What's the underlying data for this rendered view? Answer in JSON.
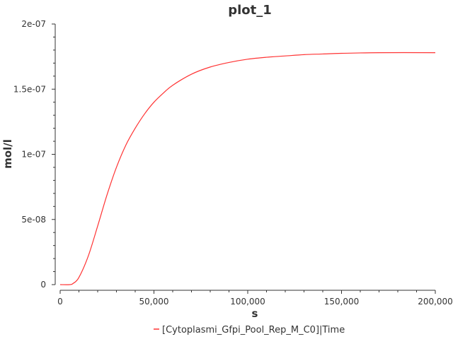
{
  "chart_data": {
    "type": "line",
    "title": "plot_1",
    "xlabel": "s",
    "ylabel": "mol/l",
    "xlim": [
      0,
      200000
    ],
    "ylim": [
      0,
      2e-07
    ],
    "x_ticks": [
      0,
      50000,
      100000,
      150000,
      200000
    ],
    "x_tick_labels": [
      "0",
      "50,000",
      "100,000",
      "150,000",
      "200,000"
    ],
    "y_ticks": [
      0,
      5e-08,
      1e-07,
      1.5e-07,
      2e-07
    ],
    "y_tick_labels": [
      "0",
      "5e-08",
      "1e-07",
      "1.5e-07",
      "2e-07"
    ],
    "grid": false,
    "legend_position": "bottom-center",
    "series": [
      {
        "name": "[Cytoplasmi_Gfpi_Pool_Rep_M_C0]|Time",
        "color": "#ff3333",
        "x": [
          0,
          5000,
          7000,
          10000,
          15000,
          20000,
          25000,
          30000,
          35000,
          40000,
          45000,
          50000,
          55000,
          60000,
          70000,
          80000,
          90000,
          100000,
          110000,
          120000,
          130000,
          140000,
          150000,
          170000,
          200000
        ],
        "y": [
          0,
          0,
          1e-09,
          5.5e-09,
          2.2e-08,
          4.5e-08,
          6.9e-08,
          9e-08,
          1.07e-07,
          1.2e-07,
          1.31e-07,
          1.4e-07,
          1.47e-07,
          1.53e-07,
          1.615e-07,
          1.67e-07,
          1.705e-07,
          1.73e-07,
          1.745e-07,
          1.755e-07,
          1.765e-07,
          1.77e-07,
          1.775e-07,
          1.78e-07,
          1.78e-07
        ]
      }
    ]
  }
}
